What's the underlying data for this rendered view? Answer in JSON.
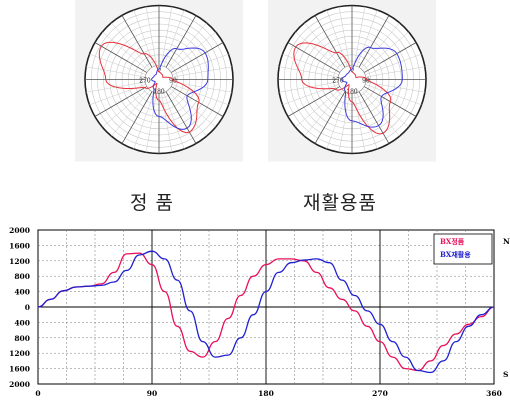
{
  "captions": {
    "left": "정 품",
    "right": "재활용품"
  },
  "chart_data": [
    {
      "type": "polar",
      "id": "polar-genuine",
      "tick_labels": [
        "0",
        "90",
        "180",
        "270"
      ],
      "series": [
        {
          "color": "#e8303a",
          "angles": [
            0,
            30,
            60,
            90,
            120,
            150,
            180,
            210,
            240,
            270,
            300,
            330,
            360
          ],
          "r": [
            10,
            8,
            6,
            18,
            62,
            82,
            28,
            6,
            22,
            72,
            90,
            40,
            10
          ]
        },
        {
          "color": "#3a3ae0",
          "angles": [
            0,
            30,
            60,
            90,
            120,
            150,
            180,
            210,
            240,
            270,
            300,
            330,
            360
          ],
          "r": [
            14,
            48,
            72,
            66,
            44,
            76,
            50,
            14,
            6,
            10,
            8,
            8,
            14
          ]
        }
      ]
    },
    {
      "type": "polar",
      "id": "polar-recycled",
      "tick_labels": [
        "0",
        "90",
        "180",
        "270"
      ],
      "series": [
        {
          "color": "#e8303a",
          "angles": [
            0,
            30,
            60,
            90,
            120,
            150,
            180,
            210,
            240,
            270,
            300,
            330,
            360
          ],
          "r": [
            10,
            8,
            6,
            20,
            60,
            84,
            30,
            8,
            26,
            68,
            88,
            42,
            10
          ]
        },
        {
          "color": "#3a3ae0",
          "angles": [
            0,
            30,
            60,
            90,
            120,
            150,
            180,
            210,
            240,
            270,
            300,
            330,
            360
          ],
          "r": [
            14,
            50,
            70,
            68,
            46,
            72,
            56,
            18,
            8,
            14,
            10,
            10,
            14
          ]
        }
      ]
    },
    {
      "type": "line",
      "id": "line-comparison",
      "x_ticks": [
        "0",
        "90",
        "180",
        "270",
        "360"
      ],
      "y_ticks": [
        "2000",
        "1600",
        "1200",
        "800",
        "400",
        "0",
        "400",
        "800",
        "1200",
        "1600",
        "2000"
      ],
      "ylim": [
        -2000,
        2000
      ],
      "xlim": [
        0,
        360
      ],
      "annotations": {
        "top_right": "N",
        "bottom_right": "S"
      },
      "legend": {
        "position": "top-right"
      },
      "series": [
        {
          "name": "BX정품",
          "color": "#e8105a",
          "x": [
            0,
            10,
            20,
            30,
            40,
            50,
            60,
            70,
            80,
            90,
            100,
            110,
            120,
            130,
            140,
            150,
            160,
            170,
            180,
            190,
            200,
            210,
            220,
            230,
            240,
            250,
            260,
            270,
            280,
            290,
            300,
            310,
            320,
            330,
            340,
            350,
            360
          ],
          "y": [
            0,
            200,
            420,
            520,
            540,
            600,
            900,
            1380,
            1400,
            1100,
            400,
            -500,
            -1150,
            -1300,
            -900,
            -300,
            300,
            800,
            1100,
            1250,
            1250,
            1200,
            900,
            500,
            200,
            -100,
            -500,
            -900,
            -1300,
            -1600,
            -1650,
            -1400,
            -1000,
            -700,
            -450,
            -250,
            0
          ]
        },
        {
          "name": "BX재활용",
          "color": "#2020d0",
          "x": [
            0,
            10,
            20,
            30,
            40,
            50,
            60,
            70,
            80,
            90,
            100,
            110,
            120,
            130,
            140,
            150,
            160,
            170,
            180,
            190,
            200,
            210,
            220,
            230,
            240,
            250,
            260,
            270,
            280,
            290,
            300,
            310,
            320,
            330,
            340,
            350,
            360
          ],
          "y": [
            0,
            200,
            420,
            520,
            540,
            560,
            650,
            950,
            1350,
            1450,
            1250,
            700,
            -100,
            -900,
            -1300,
            -1250,
            -800,
            -200,
            400,
            900,
            1150,
            1220,
            1250,
            1150,
            700,
            300,
            -100,
            -450,
            -900,
            -1300,
            -1650,
            -1700,
            -1400,
            -900,
            -500,
            -200,
            0
          ]
        }
      ]
    }
  ]
}
